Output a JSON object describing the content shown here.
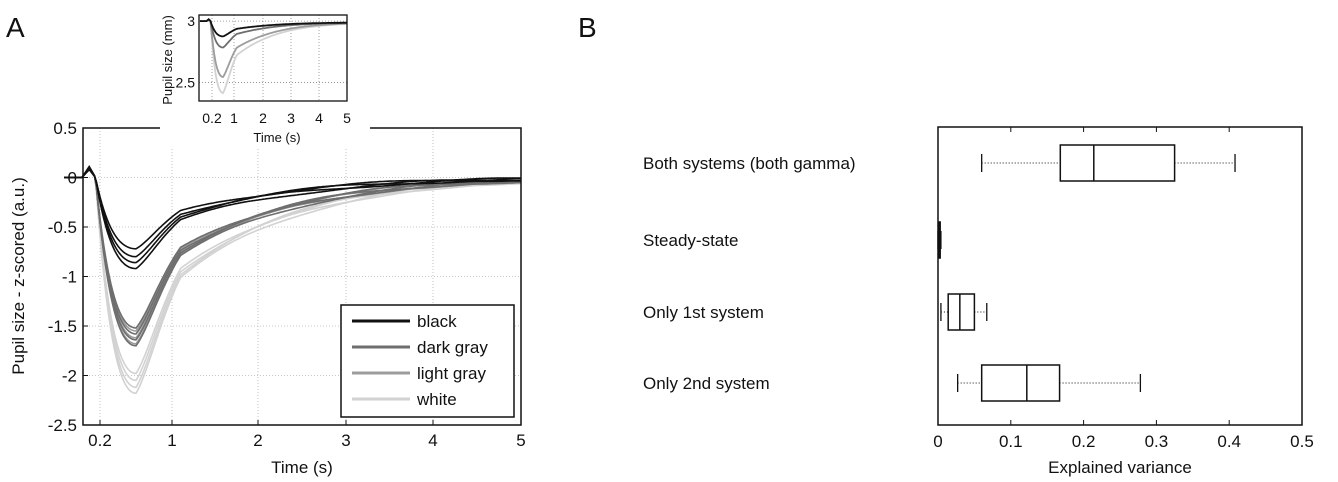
{
  "panels": {
    "a": "A",
    "b": "B"
  },
  "chart_data": [
    {
      "id": "main",
      "type": "line",
      "xlabel": "Time (s)",
      "ylabel": "Pupil size - z-scored (a.u.)",
      "xlim": [
        0,
        5
      ],
      "ylim": [
        -2.5,
        0.5
      ],
      "x_ticks": [
        0.2,
        1,
        2,
        3,
        4,
        5
      ],
      "y_ticks": [
        0.5,
        0,
        -0.5,
        -1,
        -1.5,
        -2,
        -2.5
      ],
      "y_tick_labels": [
        "0.5",
        "0",
        "-0.5",
        "-1",
        "-1.5",
        "-2",
        "-2.5"
      ],
      "x_scale": "reciprocal-like",
      "grid": true,
      "legend": "bottom-right",
      "series": [
        {
          "name": "black",
          "color": "#111111",
          "minima": [
            -0.72,
            -0.8,
            -0.86,
            -0.92
          ]
        },
        {
          "name": "dark gray",
          "color": "#6e6e6e",
          "minima": [
            -1.52,
            -1.58,
            -1.64,
            -1.7
          ]
        },
        {
          "name": "light gray",
          "color": "#9c9c9c",
          "minima": [
            -1.55,
            -1.62,
            -1.68
          ]
        },
        {
          "name": "white",
          "color": "#d2d2d2",
          "minima": [
            -1.98,
            -2.05,
            -2.12,
            -2.18
          ]
        }
      ]
    },
    {
      "id": "inset",
      "type": "line",
      "xlabel": "Time (s)",
      "ylabel": "Pupil size (mm)",
      "xlim": [
        0,
        5
      ],
      "ylim": [
        2.35,
        3.05
      ],
      "x_ticks": [
        0.2,
        1,
        2,
        3,
        4,
        5
      ],
      "y_ticks": [
        3,
        2.5
      ],
      "y_tick_labels": [
        "3",
        "2.5"
      ],
      "grid": true,
      "series": [
        {
          "color": "#111111",
          "min": 2.88
        },
        {
          "color": "#6e6e6e",
          "min": 2.79
        },
        {
          "color": "#9c9c9c",
          "min": 2.55
        },
        {
          "color": "#d2d2d2",
          "min": 2.42
        }
      ]
    },
    {
      "id": "boxplot",
      "type": "box",
      "xlabel": "Explained variance",
      "xlim": [
        0,
        0.5
      ],
      "x_ticks": [
        0,
        0.1,
        0.2,
        0.3,
        0.4,
        0.5
      ],
      "x_tick_labels": [
        "0",
        "0.1",
        "0.2",
        "0.3",
        "0.4",
        "0.5"
      ],
      "categories": [
        "Both systems (both gamma)",
        "Steady-state",
        "Only 1st system",
        "Only 2nd system"
      ],
      "boxes": [
        {
          "whisker_low": 0.06,
          "q1": 0.168,
          "median": 0.214,
          "q3": 0.325,
          "whisker_high": 0.408
        },
        {
          "whisker_low": 0.0,
          "q1": 0.001,
          "median": 0.002,
          "q3": 0.003,
          "whisker_high": 0.004
        },
        {
          "whisker_low": 0.004,
          "q1": 0.014,
          "median": 0.03,
          "q3": 0.05,
          "whisker_high": 0.067
        },
        {
          "whisker_low": 0.027,
          "q1": 0.06,
          "median": 0.122,
          "q3": 0.167,
          "whisker_high": 0.278
        }
      ]
    }
  ]
}
